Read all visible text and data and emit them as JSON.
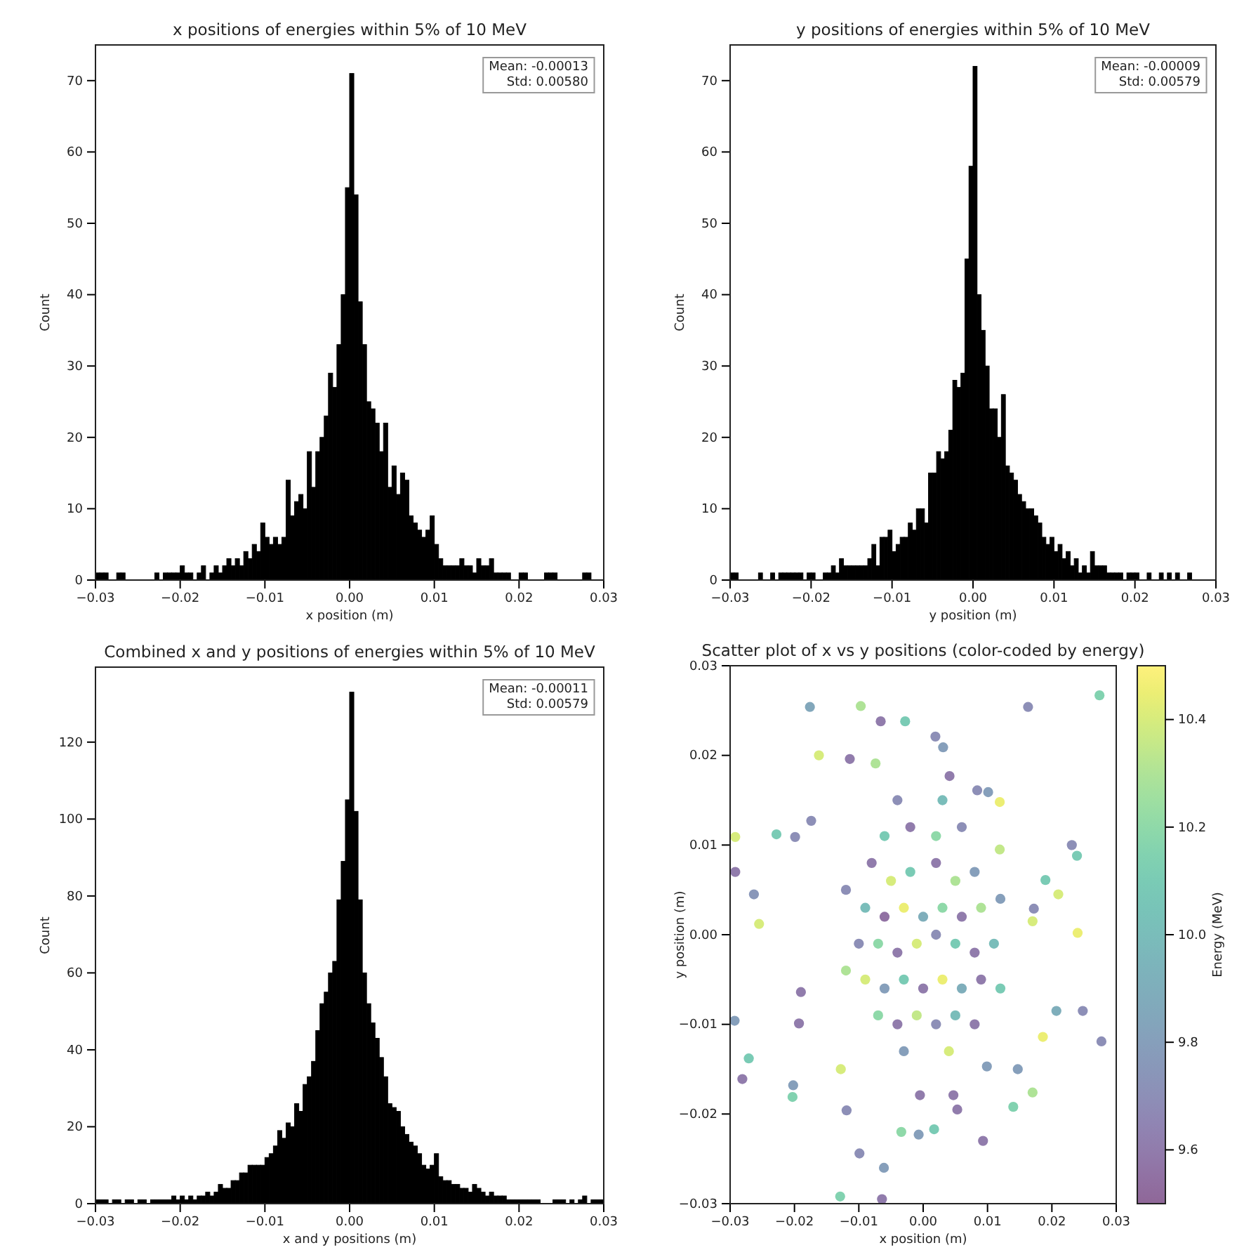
{
  "chart_data": [
    {
      "type": "histogram",
      "title": "x positions of energies within 5% of 10 MeV",
      "xlabel": "x position (m)",
      "ylabel": "Count",
      "color": "#000000",
      "annotations": [
        "Mean: -0.00013\nStd: 0.00580"
      ],
      "xlim": [
        -0.03,
        0.03
      ],
      "xticks": [
        {
          "value": -0.03,
          "label": "−0.03"
        },
        {
          "value": -0.02,
          "label": "−0.02"
        },
        {
          "value": -0.01,
          "label": "−0.01"
        },
        {
          "value": 0,
          "label": "0.00"
        },
        0.01,
        0.02,
        0.03
      ],
      "ylim": [
        0,
        75
      ],
      "yticks": [
        0,
        10,
        20,
        30,
        40,
        50,
        60,
        70
      ],
      "bins": [
        -0.03,
        -0.0295,
        -0.029,
        -0.0285,
        -0.028,
        -0.0275,
        -0.027,
        -0.0265,
        -0.026,
        -0.0255,
        -0.025,
        -0.0245,
        -0.024,
        -0.0235,
        -0.023,
        -0.0225,
        -0.022,
        -0.0215,
        -0.021,
        -0.0205,
        -0.02,
        -0.0195,
        -0.019,
        -0.0185,
        -0.018,
        -0.0175,
        -0.017,
        -0.0165,
        -0.016,
        -0.0155,
        -0.015,
        -0.0145,
        -0.014,
        -0.0135,
        -0.013,
        -0.0125,
        -0.012,
        -0.0115,
        -0.011,
        -0.0105,
        -0.01,
        -0.0095,
        -0.009,
        -0.0085,
        -0.008,
        -0.0075,
        -0.007,
        -0.0065,
        -0.006,
        -0.0055,
        -0.005,
        -0.0045,
        -0.004,
        -0.0035,
        -0.003,
        -0.0025,
        -0.002,
        -0.0015,
        -0.001,
        -0.0005,
        0,
        0.0005,
        0.001,
        0.0015,
        0.002,
        0.0025,
        0.003,
        0.0035,
        0.004,
        0.0045,
        0.005,
        0.0055,
        0.006,
        0.0065,
        0.007,
        0.0075,
        0.008,
        0.0085,
        0.009,
        0.0095,
        0.01,
        0.0105,
        0.011,
        0.0115,
        0.012,
        0.0125,
        0.013,
        0.0135,
        0.014,
        0.0145,
        0.015,
        0.0155,
        0.016,
        0.0165,
        0.017,
        0.0175,
        0.018,
        0.0185,
        0.019,
        0.0195,
        0.02,
        0.0205,
        0.021,
        0.0215,
        0.022,
        0.0225,
        0.023,
        0.0235,
        0.024,
        0.0245,
        0.025,
        0.0255,
        0.026,
        0.0265,
        0.027,
        0.0275,
        0.028,
        0.0285,
        0.029,
        0.0295,
        0.03
      ],
      "values": [
        1,
        1,
        1,
        0,
        0,
        1,
        1,
        0,
        0,
        0,
        0,
        0,
        0,
        0,
        1,
        0,
        1,
        1,
        1,
        1,
        2,
        1,
        1,
        0,
        1,
        2,
        0,
        1,
        2,
        1,
        2,
        3,
        2,
        3,
        2,
        4,
        3,
        5,
        4,
        8,
        6,
        5,
        6,
        5,
        6,
        14,
        9,
        11,
        12,
        10,
        18,
        13,
        18,
        20,
        23,
        29,
        27,
        33,
        40,
        55,
        71,
        54,
        39,
        33,
        25,
        24,
        22,
        18,
        22,
        13,
        16,
        12,
        15,
        14,
        9,
        8,
        7,
        6,
        7,
        9,
        5,
        3,
        2,
        2,
        2,
        2,
        3,
        2,
        2,
        1,
        3,
        2,
        2,
        3,
        1,
        1,
        1,
        1,
        0,
        0,
        1,
        1,
        0,
        0,
        0,
        0,
        1,
        1,
        1,
        0,
        0,
        0,
        0,
        0,
        0,
        1,
        1,
        0,
        0,
        0
      ]
    },
    {
      "type": "histogram",
      "title": "y positions of energies within 5% of 10 MeV",
      "xlabel": "y position (m)",
      "ylabel": "Count",
      "color": "#000000",
      "annotations": [
        "Mean: -0.00009\nStd: 0.00579"
      ],
      "xlim": [
        -0.03,
        0.03
      ],
      "xticks": [
        {
          "value": -0.03,
          "label": "−0.03"
        },
        {
          "value": -0.02,
          "label": "−0.02"
        },
        {
          "value": -0.01,
          "label": "−0.01"
        },
        {
          "value": 0,
          "label": "0.00"
        },
        0.01,
        0.02,
        0.03
      ],
      "ylim": [
        0,
        75
      ],
      "yticks": [
        0,
        10,
        20,
        30,
        40,
        50,
        60,
        70
      ],
      "bins": [
        -0.03,
        -0.0295,
        -0.029,
        -0.0285,
        -0.028,
        -0.0275,
        -0.027,
        -0.0265,
        -0.026,
        -0.0255,
        -0.025,
        -0.0245,
        -0.024,
        -0.0235,
        -0.023,
        -0.0225,
        -0.022,
        -0.0215,
        -0.021,
        -0.0205,
        -0.02,
        -0.0195,
        -0.019,
        -0.0185,
        -0.018,
        -0.0175,
        -0.017,
        -0.0165,
        -0.016,
        -0.0155,
        -0.015,
        -0.0145,
        -0.014,
        -0.0135,
        -0.013,
        -0.0125,
        -0.012,
        -0.0115,
        -0.011,
        -0.0105,
        -0.01,
        -0.0095,
        -0.009,
        -0.0085,
        -0.008,
        -0.0075,
        -0.007,
        -0.0065,
        -0.006,
        -0.0055,
        -0.005,
        -0.0045,
        -0.004,
        -0.0035,
        -0.003,
        -0.0025,
        -0.002,
        -0.0015,
        -0.001,
        -0.0005,
        0,
        0.0005,
        0.001,
        0.0015,
        0.002,
        0.0025,
        0.003,
        0.0035,
        0.004,
        0.0045,
        0.005,
        0.0055,
        0.006,
        0.0065,
        0.007,
        0.0075,
        0.008,
        0.0085,
        0.009,
        0.0095,
        0.01,
        0.0105,
        0.011,
        0.0115,
        0.012,
        0.0125,
        0.013,
        0.0135,
        0.014,
        0.0145,
        0.015,
        0.0155,
        0.016,
        0.0165,
        0.017,
        0.0175,
        0.018,
        0.0185,
        0.019,
        0.0195,
        0.02,
        0.0205,
        0.021,
        0.0215,
        0.022,
        0.0225,
        0.023,
        0.0235,
        0.024,
        0.0245,
        0.025,
        0.0255,
        0.026,
        0.0265,
        0.027,
        0.0275,
        0.028,
        0.0285,
        0.029,
        0.0295,
        0.03
      ],
      "values": [
        1,
        1,
        0,
        0,
        0,
        0,
        0,
        1,
        0,
        0,
        1,
        0,
        1,
        1,
        1,
        1,
        1,
        1,
        0,
        1,
        1,
        0,
        0,
        1,
        1,
        2,
        1,
        3,
        2,
        2,
        2,
        2,
        2,
        2,
        3,
        5,
        2,
        6,
        6,
        7,
        4,
        5,
        6,
        6,
        8,
        7,
        10,
        10,
        8,
        15,
        15,
        18,
        17,
        18,
        21,
        28,
        27,
        29,
        45,
        58,
        72,
        40,
        35,
        30,
        24,
        24,
        20,
        26,
        16,
        15,
        14,
        12,
        11,
        10,
        10,
        9,
        8,
        6,
        5,
        6,
        4,
        5,
        3,
        4,
        2,
        3,
        1,
        2,
        1,
        4,
        2,
        2,
        2,
        1,
        1,
        1,
        1,
        0,
        1,
        1,
        1,
        0,
        0,
        1,
        0,
        0,
        1,
        0,
        1,
        0,
        1,
        0,
        0,
        1,
        0,
        0,
        0,
        0,
        0,
        0
      ]
    },
    {
      "type": "histogram",
      "title": "Combined x and y positions of energies within 5% of 10 MeV",
      "xlabel": "x and y positions (m)",
      "ylabel": "Count",
      "color": "#000000",
      "annotations": [
        "Mean: -0.00011\nStd: 0.00579"
      ],
      "xlim": [
        -0.03,
        0.03
      ],
      "xticks": [
        {
          "value": -0.03,
          "label": "−0.03"
        },
        {
          "value": -0.02,
          "label": "−0.02"
        },
        {
          "value": -0.01,
          "label": "−0.01"
        },
        {
          "value": 0,
          "label": "0.00"
        },
        0.01,
        0.02,
        0.03
      ],
      "ylim": [
        0,
        139.5
      ],
      "yticks": [
        0,
        20,
        40,
        60,
        80,
        100,
        120
      ],
      "bins": [
        -0.03,
        -0.0295,
        -0.029,
        -0.0285,
        -0.028,
        -0.0275,
        -0.027,
        -0.0265,
        -0.026,
        -0.0255,
        -0.025,
        -0.0245,
        -0.024,
        -0.0235,
        -0.023,
        -0.0225,
        -0.022,
        -0.0215,
        -0.021,
        -0.0205,
        -0.02,
        -0.0195,
        -0.019,
        -0.0185,
        -0.018,
        -0.0175,
        -0.017,
        -0.0165,
        -0.016,
        -0.0155,
        -0.015,
        -0.0145,
        -0.014,
        -0.0135,
        -0.013,
        -0.0125,
        -0.012,
        -0.0115,
        -0.011,
        -0.0105,
        -0.01,
        -0.0095,
        -0.009,
        -0.0085,
        -0.008,
        -0.0075,
        -0.007,
        -0.0065,
        -0.006,
        -0.0055,
        -0.005,
        -0.0045,
        -0.004,
        -0.0035,
        -0.003,
        -0.0025,
        -0.002,
        -0.0015,
        -0.001,
        -0.0005,
        0,
        0.0005,
        0.001,
        0.0015,
        0.002,
        0.0025,
        0.003,
        0.0035,
        0.004,
        0.0045,
        0.005,
        0.0055,
        0.006,
        0.0065,
        0.007,
        0.0075,
        0.008,
        0.0085,
        0.009,
        0.0095,
        0.01,
        0.0105,
        0.011,
        0.0115,
        0.012,
        0.0125,
        0.013,
        0.0135,
        0.014,
        0.0145,
        0.015,
        0.0155,
        0.016,
        0.0165,
        0.017,
        0.0175,
        0.018,
        0.0185,
        0.019,
        0.0195,
        0.02,
        0.0205,
        0.021,
        0.0215,
        0.022,
        0.0225,
        0.023,
        0.0235,
        0.024,
        0.0245,
        0.025,
        0.0255,
        0.026,
        0.0265,
        0.027,
        0.0275,
        0.028,
        0.0285,
        0.029,
        0.0295,
        0.03
      ],
      "values": [
        1,
        1,
        1,
        0,
        1,
        1,
        0,
        1,
        1,
        0,
        1,
        1,
        0,
        1,
        1,
        1,
        1,
        1,
        2,
        1,
        2,
        1,
        2,
        1,
        2,
        2,
        3,
        2,
        3,
        5,
        4,
        4,
        6,
        6,
        8,
        8,
        10,
        10,
        10,
        10,
        12,
        13,
        15,
        19,
        17,
        21,
        20,
        26,
        24,
        31,
        33,
        37,
        45,
        52,
        55,
        60,
        63,
        79,
        89,
        105,
        133,
        102,
        79,
        60,
        52,
        47,
        43,
        38,
        33,
        26,
        25,
        24,
        20,
        18,
        16,
        15,
        13,
        10,
        9,
        10,
        13,
        7,
        6,
        6,
        5,
        5,
        4,
        4,
        3,
        5,
        4,
        3,
        2,
        3,
        2,
        2,
        2,
        1,
        1,
        1,
        1,
        1,
        1,
        1,
        1,
        0,
        0,
        0,
        1,
        1,
        1,
        0,
        1,
        0,
        1,
        2,
        0,
        1,
        1,
        1
      ]
    },
    {
      "type": "scatter",
      "title": "Scatter plot of x vs y positions (color-coded by energy)",
      "xlabel": "x position (m)",
      "ylabel": "y position (m)",
      "clabel": "Energy (MeV)",
      "marker": "circle",
      "xlim": [
        -0.03,
        0.03
      ],
      "xticks": [
        {
          "value": -0.03,
          "label": "−0.03"
        },
        {
          "value": -0.02,
          "label": "−0.02"
        },
        {
          "value": -0.01,
          "label": "−0.01"
        },
        {
          "value": 0,
          "label": "0.00"
        },
        0.01,
        0.02,
        0.03
      ],
      "ylim": [
        -0.03,
        0.03
      ],
      "yticks": [
        {
          "value": -0.03,
          "label": "−0.03"
        },
        {
          "value": -0.02,
          "label": "−0.02"
        },
        {
          "value": -0.01,
          "label": "−0.01"
        },
        {
          "value": 0,
          "label": "0.00"
        },
        0.01,
        0.02,
        0.03
      ],
      "clim": [
        9.5,
        10.5
      ],
      "cticks": [
        9.6,
        9.8,
        {
          "value": 10,
          "label": "10.0"
        },
        10.2,
        10.4
      ],
      "x": [
        0.0274,
        -0.0176,
        -0.0097,
        0.0163,
        -0.0066,
        -0.0028,
        0.0019,
        -0.0162,
        -0.0114,
        -0.0292,
        -0.0228,
        -0.0199,
        0.0231,
        0.0239,
        -0.0292,
        -0.0263,
        -0.0255,
        0.021,
        0.024,
        -0.0293,
        -0.0271,
        -0.0281,
        -0.0202,
        -0.0203,
        -0.0193,
        0.0248,
        0.0277,
        0.0207,
        0.0186,
        0.017,
        0.014,
        0.0093,
        0.0053,
        0.0017,
        -0.0007,
        -0.0034,
        -0.0061,
        -0.0129,
        -0.0064,
        -0.0099,
        -0.0119,
        -0.0128,
        -0.0005,
        0.0047,
        0.0099,
        0.0147,
        0.0119,
        0.0119,
        0.0084,
        0.0101,
        0.0041,
        0.0031,
        -0.0074,
        -0.0174,
        0.019,
        0.0172,
        0.017,
        -0.019,
        -0.008,
        -0.005,
        -0.002,
        0.002,
        0.005,
        0.008,
        -0.009,
        -0.006,
        -0.003,
        0,
        0.003,
        0.006,
        0.009,
        -0.01,
        -0.007,
        -0.004,
        -0.001,
        0.002,
        0.005,
        0.008,
        0.011,
        -0.009,
        -0.006,
        -0.003,
        0,
        0.003,
        0.006,
        0.009,
        -0.007,
        -0.004,
        -0.001,
        0.002,
        0.005,
        0.008,
        -0.006,
        -0.002,
        0.002,
        0.006,
        -0.012,
        0.012,
        -0.012,
        0.012,
        -0.003,
        0.004,
        -0.004,
        0.003
      ],
      "values": [
        0.0267,
        0.0254,
        0.0255,
        0.0254,
        0.0238,
        0.0238,
        0.0221,
        0.02,
        0.0196,
        0.0109,
        0.0112,
        0.0109,
        0.01,
        0.0088,
        0.007,
        0.0045,
        0.0012,
        0.0045,
        0.0002,
        -0.0096,
        -0.0138,
        -0.0161,
        -0.0168,
        -0.0181,
        -0.0099,
        -0.0085,
        -0.0119,
        -0.0085,
        -0.0114,
        -0.0176,
        -0.0192,
        -0.023,
        -0.0195,
        -0.0217,
        -0.0223,
        -0.022,
        -0.026,
        -0.0292,
        -0.0295,
        -0.0244,
        -0.0196,
        -0.015,
        -0.0179,
        -0.0179,
        -0.0147,
        -0.015,
        0.0095,
        0.0148,
        0.0161,
        0.0159,
        0.0177,
        0.0209,
        0.0191,
        0.0127,
        0.0061,
        0.0029,
        0.0015,
        -0.0064,
        0.008,
        0.006,
        0.007,
        0.008,
        0.006,
        0.007,
        0.003,
        0.002,
        0.003,
        0.002,
        0.003,
        0.002,
        0.003,
        -0.001,
        -0.001,
        -0.002,
        -0.001,
        0,
        -0.001,
        -0.002,
        -0.001,
        -0.005,
        -0.006,
        -0.005,
        -0.006,
        -0.005,
        -0.006,
        -0.005,
        -0.009,
        -0.01,
        -0.009,
        -0.01,
        -0.009,
        -0.01,
        0.011,
        0.012,
        0.011,
        0.012,
        0.005,
        0.004,
        -0.004,
        -0.006,
        -0.013,
        -0.013,
        0.015,
        0.015
      ],
      "cvalues": [
        10.15,
        9.85,
        10.3,
        9.7,
        9.6,
        10.1,
        9.7,
        10.4,
        9.6,
        10.4,
        10.1,
        9.7,
        9.7,
        10.1,
        9.6,
        9.75,
        10.4,
        10.4,
        10.45,
        9.8,
        10.1,
        9.6,
        9.8,
        10.15,
        9.6,
        9.7,
        9.7,
        9.9,
        10.45,
        10.3,
        10.15,
        9.6,
        9.6,
        10.1,
        9.8,
        10.2,
        9.8,
        10.15,
        9.6,
        9.7,
        9.7,
        10.4,
        9.6,
        9.6,
        9.8,
        9.8,
        10.35,
        10.45,
        9.7,
        9.8,
        9.6,
        9.8,
        10.3,
        9.7,
        10.1,
        9.7,
        10.4,
        9.6,
        9.6,
        10.4,
        10.1,
        9.6,
        10.3,
        9.8,
        10,
        9.55,
        10.45,
        9.9,
        10.2,
        9.6,
        10.3,
        9.7,
        10.2,
        9.6,
        10.4,
        9.7,
        10.1,
        9.6,
        10,
        10.4,
        9.8,
        10.1,
        9.6,
        10.45,
        9.9,
        9.6,
        10.2,
        9.6,
        10.35,
        9.7,
        10,
        9.6,
        10.1,
        9.6,
        10.2,
        9.7,
        9.7,
        9.8,
        10.3,
        10.1,
        9.8,
        10.4,
        9.7,
        10
      ]
    }
  ]
}
